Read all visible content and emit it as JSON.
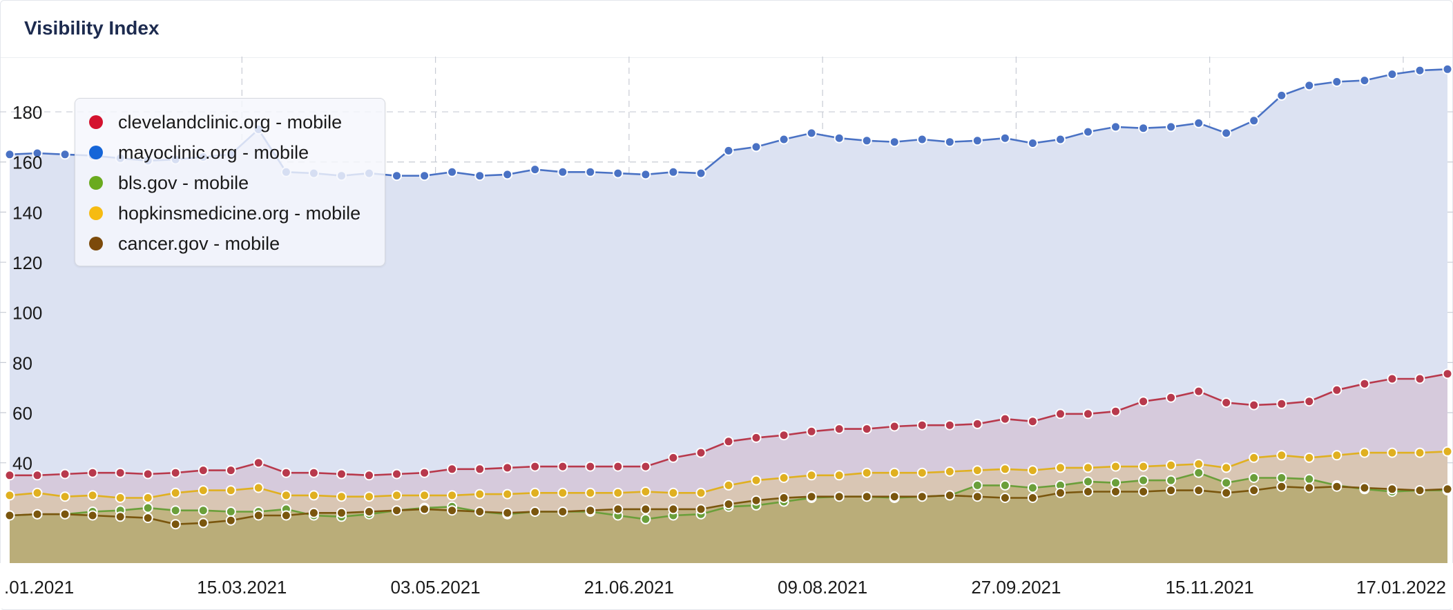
{
  "header": {
    "title": "Visibility Index"
  },
  "legend": {
    "items": [
      {
        "label": "clevelandclinic.org - mobile",
        "color": "#d4122e"
      },
      {
        "label": "mayoclinic.org - mobile",
        "color": "#1565d8"
      },
      {
        "label": "bls.gov - mobile",
        "color": "#6aaa1e"
      },
      {
        "label": "hopkinsmedicine.org - mobile",
        "color": "#f6bb12"
      },
      {
        "label": "cancer.gov - mobile",
        "color": "#7c4a0a"
      }
    ]
  },
  "chart_data": {
    "type": "area",
    "title": "Visibility Index",
    "xlabel": "",
    "ylabel": "",
    "ylim": [
      0,
      200
    ],
    "y_ticks": [
      40,
      60,
      80,
      100,
      120,
      140,
      160,
      180
    ],
    "grid": true,
    "legend_position": "top-left",
    "x_tick_labels": [
      ".01.2021",
      "15.03.2021",
      "03.05.2021",
      "21.06.2021",
      "09.08.2021",
      "27.09.2021",
      "15.11.2021",
      "17.01.2022"
    ],
    "x_tick_indices": [
      0,
      8.4,
      15.4,
      22.4,
      29.4,
      36.4,
      43.4,
      50.4
    ],
    "series": [
      {
        "name": "mayoclinic.org - mobile",
        "color": "#4a72c4",
        "fill": "#dce2f2",
        "values": [
          163,
          163.5,
          163,
          162.5,
          161.5,
          160.5,
          161,
          162,
          163,
          173,
          156,
          155.5,
          154.5,
          155.5,
          154.5,
          154.5,
          156,
          154.5,
          155,
          157,
          156,
          156,
          155.5,
          155,
          156,
          155.5,
          164.5,
          166,
          169,
          171.5,
          169.5,
          168.5,
          168,
          169,
          168,
          168.5,
          169.5,
          167.5,
          169,
          172,
          174,
          173.5,
          174,
          175.5,
          171.5,
          176.5,
          186.5,
          190.5,
          192,
          192.5,
          195,
          196.5,
          197
        ]
      },
      {
        "name": "clevelandclinic.org - mobile",
        "color": "#b8394c",
        "fill": "#d5c5d8",
        "values": [
          35,
          35,
          35.5,
          36,
          36,
          35.5,
          36,
          37,
          37,
          40,
          36,
          36,
          35.5,
          35,
          35.5,
          36,
          37.5,
          37.5,
          38,
          38.5,
          38.5,
          38.5,
          38.5,
          38.5,
          42,
          44,
          48.5,
          50,
          51,
          52.5,
          53.5,
          53.5,
          54.5,
          55,
          55,
          55.5,
          57.5,
          56.5,
          59.5,
          59.5,
          60.5,
          64.5,
          66,
          68.5,
          64,
          63,
          63.5,
          64.5,
          69,
          71.5,
          73.5,
          73.5,
          75.5
        ]
      },
      {
        "name": "hopkinsmedicine.org - mobile",
        "color": "#e0b020",
        "fill": "#d9c5ad",
        "values": [
          27,
          28,
          26.5,
          27,
          26,
          26,
          28,
          29,
          29,
          30,
          27,
          27,
          26.5,
          26.5,
          27,
          27,
          27,
          27.5,
          27.5,
          28,
          28,
          28,
          28,
          28.5,
          28,
          28,
          31,
          33,
          34,
          35,
          35,
          36,
          36,
          36,
          36.5,
          37,
          37.5,
          37,
          38,
          38,
          38.5,
          38.5,
          39,
          39.5,
          38,
          42,
          43,
          42,
          43,
          44,
          44,
          44,
          44.5
        ]
      },
      {
        "name": "bls.gov - mobile",
        "color": "#6a9f3a",
        "fill": "#bdb07a",
        "values": [
          19,
          19.5,
          19.5,
          20.5,
          21,
          22,
          21,
          21,
          20.5,
          20.5,
          21.5,
          19,
          18.5,
          19.5,
          21,
          22,
          22.5,
          20.5,
          19.5,
          20.5,
          20.5,
          20.5,
          19,
          17.5,
          19,
          19.5,
          22.5,
          23,
          24.5,
          26,
          26.5,
          26.5,
          26,
          26.5,
          27,
          31,
          31,
          30,
          31,
          32.5,
          32,
          33,
          33,
          36,
          32,
          34,
          34,
          33.5,
          31,
          29.5,
          28.5,
          29,
          29
        ]
      },
      {
        "name": "cancer.gov - mobile",
        "color": "#7a560e",
        "fill": "#b8ab78",
        "values": [
          19,
          19.5,
          19.5,
          19,
          18.5,
          18,
          15.5,
          16,
          17,
          19,
          19,
          20,
          20,
          20.5,
          21,
          21.5,
          21,
          20.5,
          20,
          20.5,
          20.5,
          21,
          21.5,
          21.5,
          21.5,
          21.5,
          23.5,
          25,
          26,
          26.5,
          26.5,
          26.5,
          26.5,
          26.5,
          27,
          26.5,
          26,
          26,
          28,
          28.5,
          28.5,
          28.5,
          29,
          29,
          28,
          29,
          30.5,
          30,
          30.5,
          30,
          29.5,
          29,
          29.5
        ]
      }
    ]
  }
}
